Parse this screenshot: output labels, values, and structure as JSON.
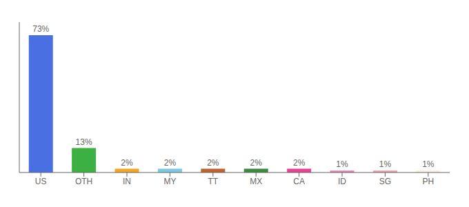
{
  "chart_data": {
    "type": "bar",
    "categories": [
      "US",
      "OTH",
      "IN",
      "MY",
      "TT",
      "MX",
      "CA",
      "ID",
      "SG",
      "PH"
    ],
    "values": [
      73,
      13,
      2,
      2,
      2,
      2,
      2,
      1,
      1,
      1
    ],
    "value_labels": [
      "73%",
      "13%",
      "2%",
      "2%",
      "2%",
      "2%",
      "2%",
      "1%",
      "1%",
      "1%"
    ],
    "colors": [
      "#4A6FE3",
      "#3CB043",
      "#F5A623",
      "#7EC8E3",
      "#C0622F",
      "#3B8A3E",
      "#E84393",
      "#E87DBB",
      "#E8A0A0",
      "#F5F0D8"
    ],
    "ylim": [
      0,
      80
    ],
    "data_labels": true,
    "tick_labels": "x"
  }
}
